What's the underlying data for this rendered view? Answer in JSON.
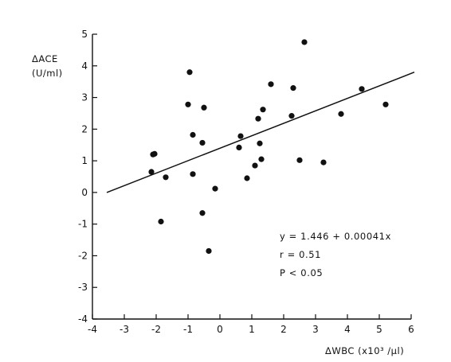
{
  "chart_data": {
    "type": "scatter",
    "title": "",
    "xlabel": "ΔWBC (x10³ /μl)",
    "ylabel": [
      "ΔACE",
      "(U/ml)"
    ],
    "xlim": [
      -4,
      6
    ],
    "ylim": [
      -4,
      5
    ],
    "xticks": [
      -4,
      -3,
      -2,
      -1,
      0,
      1,
      2,
      3,
      4,
      5,
      6
    ],
    "xtick_labels": [
      "-4",
      "-3",
      "-2",
      "-1",
      "0",
      "1",
      "2",
      "3",
      "4",
      "5",
      "6"
    ],
    "yticks": [
      -4,
      -3,
      -2,
      -1,
      0,
      1,
      2,
      3,
      4,
      5
    ],
    "ytick_labels": [
      "-4",
      "-3",
      "-2",
      "-1",
      "0",
      "1",
      "2",
      "3",
      "4",
      "5"
    ],
    "grid": false,
    "points": [
      {
        "x": 2.65,
        "y": 4.75
      },
      {
        "x": -0.95,
        "y": 3.8
      },
      {
        "x": 1.6,
        "y": 3.42
      },
      {
        "x": 2.3,
        "y": 3.3
      },
      {
        "x": 4.45,
        "y": 3.27
      },
      {
        "x": -1.0,
        "y": 2.78
      },
      {
        "x": 5.2,
        "y": 2.78
      },
      {
        "x": -0.5,
        "y": 2.68
      },
      {
        "x": 1.35,
        "y": 2.62
      },
      {
        "x": 3.8,
        "y": 2.48
      },
      {
        "x": 2.25,
        "y": 2.42
      },
      {
        "x": 1.2,
        "y": 2.33
      },
      {
        "x": -0.85,
        "y": 1.82
      },
      {
        "x": 0.65,
        "y": 1.78
      },
      {
        "x": -0.55,
        "y": 1.57
      },
      {
        "x": 1.25,
        "y": 1.55
      },
      {
        "x": 0.6,
        "y": 1.42
      },
      {
        "x": -2.05,
        "y": 1.22
      },
      {
        "x": -2.1,
        "y": 1.2
      },
      {
        "x": 1.3,
        "y": 1.05
      },
      {
        "x": 2.5,
        "y": 1.02
      },
      {
        "x": 3.25,
        "y": 0.95
      },
      {
        "x": 1.1,
        "y": 0.85
      },
      {
        "x": -2.15,
        "y": 0.65
      },
      {
        "x": -0.85,
        "y": 0.58
      },
      {
        "x": -1.7,
        "y": 0.48
      },
      {
        "x": 0.85,
        "y": 0.45
      },
      {
        "x": -0.15,
        "y": 0.12
      },
      {
        "x": -0.55,
        "y": -0.65
      },
      {
        "x": -1.85,
        "y": -0.92
      },
      {
        "x": -0.35,
        "y": -1.85
      }
    ],
    "regression_line": {
      "x": [
        -3.55,
        6.1
      ],
      "y": [
        0.0,
        3.8
      ]
    },
    "annotations": [
      "y = 1.446 + 0.00041x",
      "r = 0.51",
      "P < 0.05"
    ]
  }
}
